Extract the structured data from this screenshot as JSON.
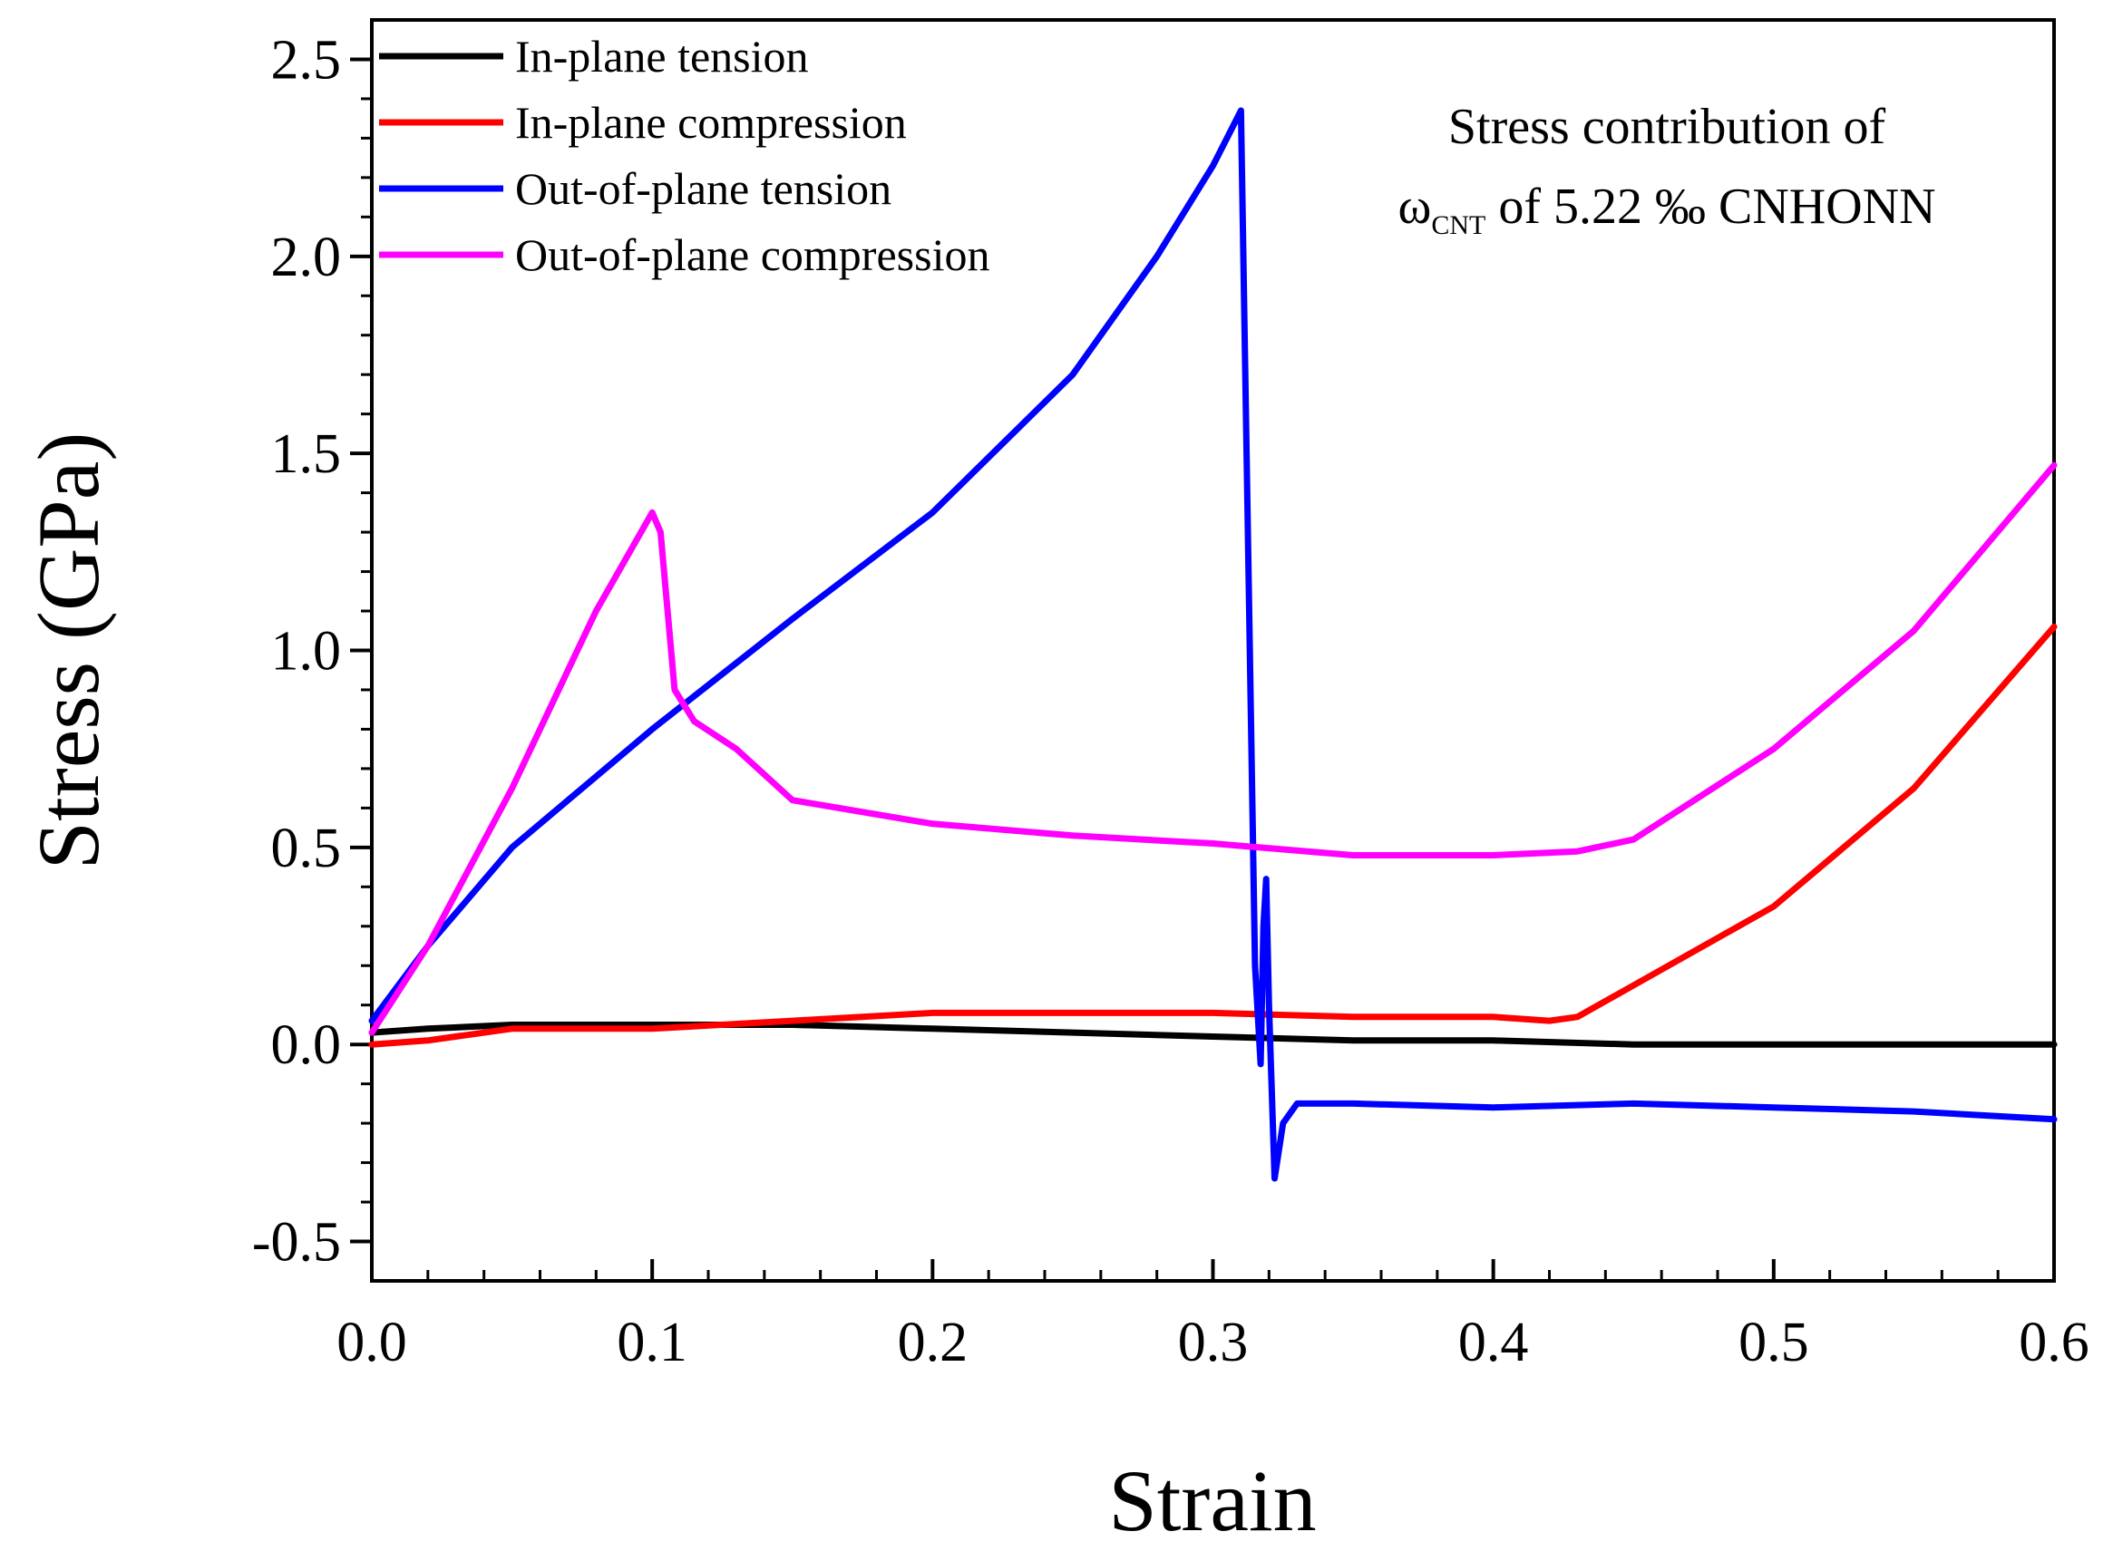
{
  "chart_data": {
    "type": "line",
    "title": "",
    "xlabel": "Strain",
    "ylabel": "Stress (GPa)",
    "xlim": [
      0.0,
      0.6
    ],
    "ylim": [
      -0.6,
      2.6
    ],
    "xticks": [
      0.0,
      0.1,
      0.2,
      0.3,
      0.4,
      0.5,
      0.6
    ],
    "xtick_labels": [
      "0.0",
      "0.1",
      "0.2",
      "0.3",
      "0.4",
      "0.5",
      "0.6"
    ],
    "yticks": [
      -0.5,
      0.0,
      0.5,
      1.0,
      1.5,
      2.0,
      2.5
    ],
    "ytick_labels": [
      "-0.5",
      "0.0",
      "0.5",
      "1.0",
      "1.5",
      "2.0",
      "2.5"
    ],
    "grid": false,
    "legend_position": "top-left",
    "annotation": {
      "line1": "Stress  contribution of",
      "symbol": "ω",
      "subscript": "CNT",
      "rest": " of 5.22 ‰ CNHONN"
    },
    "series": [
      {
        "name": "In-plane tension",
        "color": "#000000",
        "x": [
          0.0,
          0.02,
          0.05,
          0.08,
          0.1,
          0.15,
          0.2,
          0.25,
          0.3,
          0.35,
          0.4,
          0.45,
          0.5,
          0.55,
          0.6
        ],
        "y": [
          0.03,
          0.04,
          0.05,
          0.05,
          0.05,
          0.05,
          0.04,
          0.03,
          0.02,
          0.01,
          0.01,
          0.0,
          0.0,
          0.0,
          0.0
        ]
      },
      {
        "name": "In-plane compression",
        "color": "#ff0000",
        "x": [
          0.0,
          0.02,
          0.05,
          0.1,
          0.15,
          0.2,
          0.25,
          0.3,
          0.35,
          0.4,
          0.42,
          0.43,
          0.45,
          0.5,
          0.55,
          0.6
        ],
        "y": [
          0.0,
          0.01,
          0.04,
          0.04,
          0.06,
          0.08,
          0.08,
          0.08,
          0.07,
          0.07,
          0.06,
          0.07,
          0.15,
          0.35,
          0.65,
          1.06
        ]
      },
      {
        "name": "Out-of-plane tension",
        "color": "#0000ff",
        "x": [
          0.0,
          0.02,
          0.05,
          0.1,
          0.15,
          0.2,
          0.25,
          0.28,
          0.3,
          0.31,
          0.312,
          0.315,
          0.317,
          0.318,
          0.319,
          0.32,
          0.322,
          0.325,
          0.33,
          0.35,
          0.4,
          0.45,
          0.5,
          0.55,
          0.6
        ],
        "y": [
          0.06,
          0.25,
          0.5,
          0.8,
          1.08,
          1.35,
          1.7,
          2.0,
          2.23,
          2.37,
          1.5,
          0.2,
          -0.05,
          0.3,
          0.42,
          0.1,
          -0.34,
          -0.2,
          -0.15,
          -0.15,
          -0.16,
          -0.15,
          -0.16,
          -0.17,
          -0.19
        ]
      },
      {
        "name": "Out-of-plane compression",
        "color": "#ff00ff",
        "x": [
          0.0,
          0.02,
          0.05,
          0.08,
          0.1,
          0.103,
          0.108,
          0.115,
          0.13,
          0.15,
          0.2,
          0.25,
          0.3,
          0.35,
          0.4,
          0.43,
          0.45,
          0.5,
          0.55,
          0.6
        ],
        "y": [
          0.03,
          0.25,
          0.65,
          1.1,
          1.35,
          1.3,
          0.9,
          0.82,
          0.75,
          0.62,
          0.56,
          0.53,
          0.51,
          0.48,
          0.48,
          0.49,
          0.52,
          0.75,
          1.05,
          1.47
        ]
      }
    ]
  }
}
